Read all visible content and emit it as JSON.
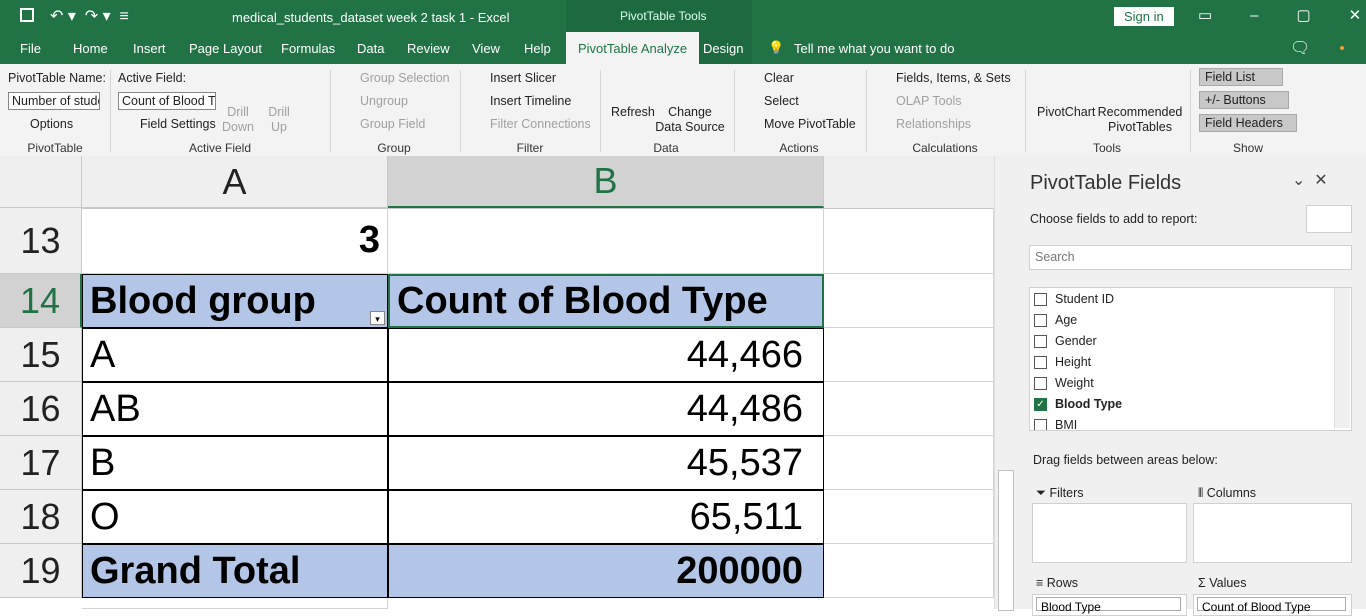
{
  "title_bar": {
    "title": "medical_students_dataset week 2 task 1  -  Excel",
    "context_tab": "PivotTable Tools",
    "sign_in": "Sign in"
  },
  "tabs": [
    "File",
    "Home",
    "Insert",
    "Page Layout",
    "Formulas",
    "Data",
    "Review",
    "View",
    "Help",
    "PivotTable Analyze",
    "Design"
  ],
  "tell_me": "Tell me what you want to do",
  "ribbon": {
    "groups": [
      {
        "label": "PivotTable",
        "items": [
          "PivotTable Name:",
          "Number of stude",
          "Options"
        ]
      },
      {
        "label": "Active Field",
        "items": [
          "Active Field:",
          "Count of Blood Ty",
          "Field Settings",
          "Drill Down",
          "Drill Up"
        ]
      },
      {
        "label": "Group",
        "items": [
          "Group Selection",
          "Ungroup",
          "Group Field"
        ]
      },
      {
        "label": "Filter",
        "items": [
          "Insert Slicer",
          "Insert Timeline",
          "Filter Connections"
        ]
      },
      {
        "label": "Data",
        "items": [
          "Refresh",
          "Change Data Source"
        ]
      },
      {
        "label": "Actions",
        "items": [
          "Clear",
          "Select",
          "Move PivotTable"
        ]
      },
      {
        "label": "Calculations",
        "items": [
          "Fields, Items, & Sets",
          "OLAP Tools",
          "Relationships"
        ]
      },
      {
        "label": "Tools",
        "items": [
          "PivotChart",
          "Recommended PivotTables"
        ]
      },
      {
        "label": "Show",
        "items": [
          "Field List",
          "+/- Buttons",
          "Field Headers"
        ]
      }
    ]
  },
  "sheet": {
    "columns": [
      "A",
      "B"
    ],
    "rows": [
      {
        "header": "13",
        "a": "3"
      },
      {
        "header": "14",
        "a": "Blood group",
        "b": "Count of Blood Type"
      },
      {
        "header": "15",
        "a": "A",
        "b": "44,466"
      },
      {
        "header": "16",
        "a": "AB",
        "b": "44,486"
      },
      {
        "header": "17",
        "a": "B",
        "b": "45,537"
      },
      {
        "header": "18",
        "a": "O",
        "b": "65,511"
      },
      {
        "header": "19",
        "a": "Grand Total",
        "b": "200000"
      }
    ]
  },
  "pane": {
    "title": "PivotTable Fields",
    "subtitle": "Choose fields to add to report:",
    "search": "Search",
    "fields": [
      {
        "name": "Student ID",
        "checked": false
      },
      {
        "name": "Age",
        "checked": false
      },
      {
        "name": "Gender",
        "checked": false
      },
      {
        "name": "Height",
        "checked": false
      },
      {
        "name": "Weight",
        "checked": false
      },
      {
        "name": "Blood Type",
        "checked": true
      },
      {
        "name": "BMI",
        "checked": false
      }
    ],
    "drag_hint": "Drag fields between areas below:",
    "areas": {
      "filters": "Filters",
      "columns": "Columns",
      "rows": "Rows",
      "values": "Values"
    },
    "row_item": "Blood Type",
    "value_item": "Count of Blood Type"
  }
}
